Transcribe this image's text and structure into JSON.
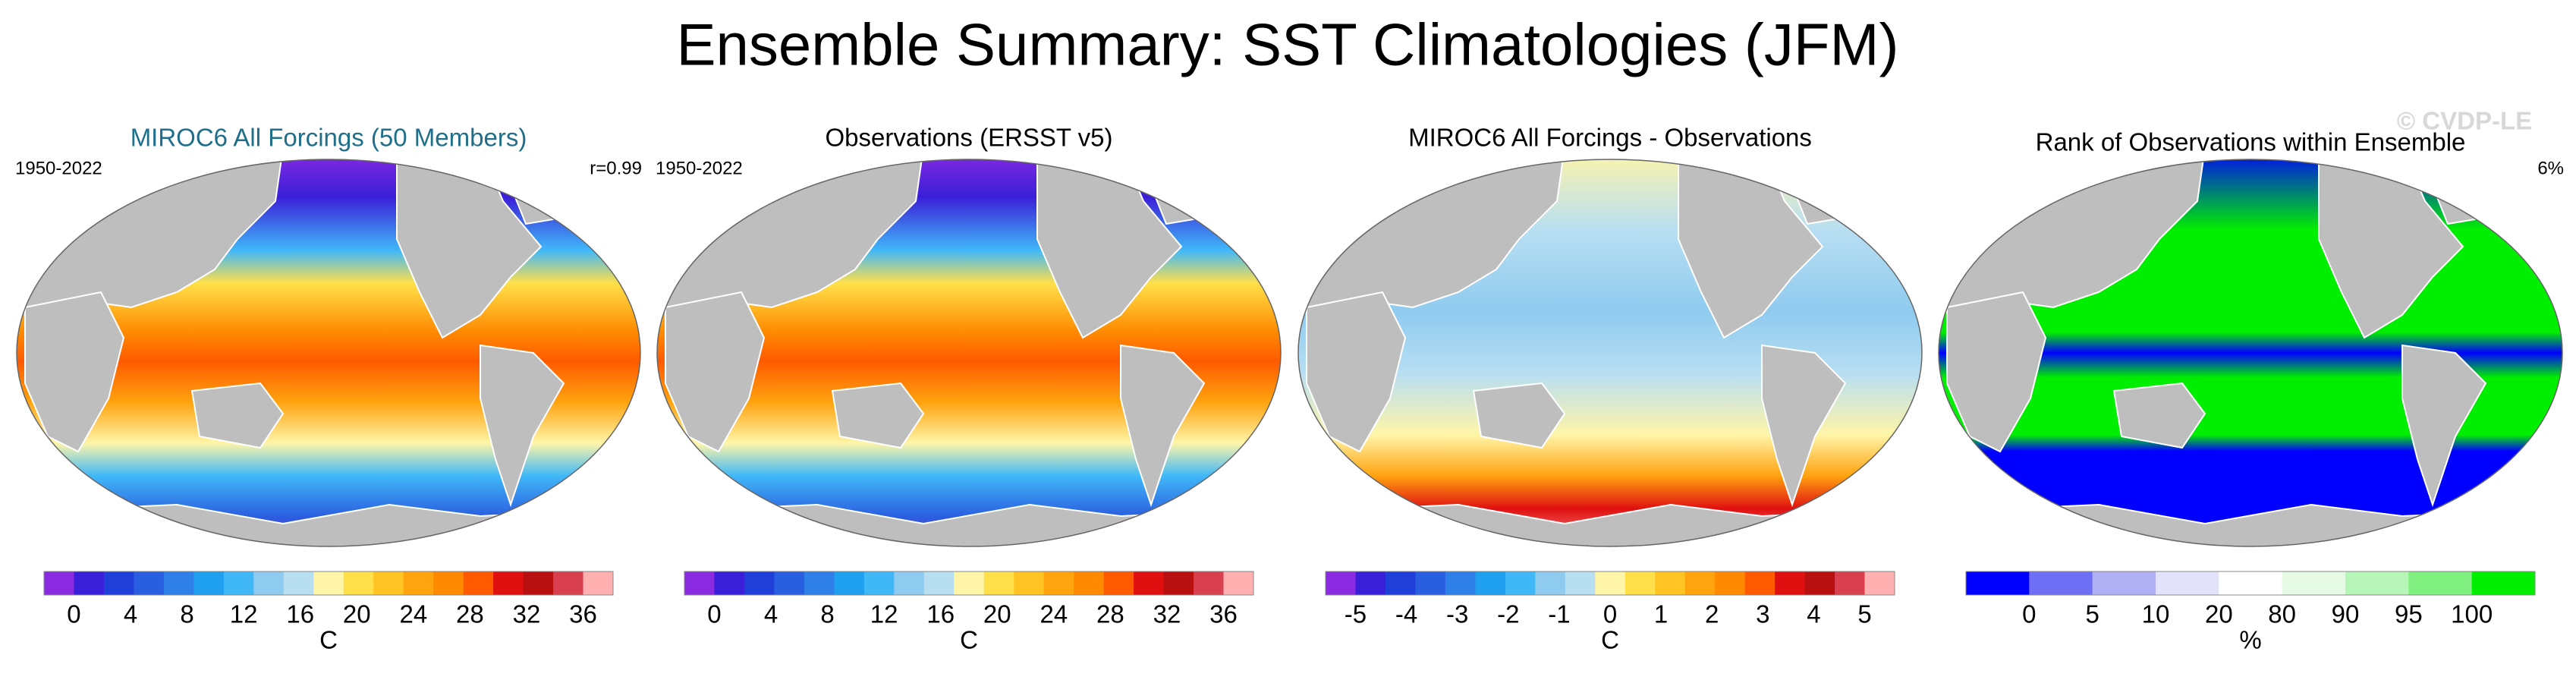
{
  "title": "Ensemble Summary: SST Climatologies (JFM)",
  "watermark": "© CVDP-LE",
  "panels": [
    {
      "title": "MIROC6 All Forcings (50 Members)",
      "title_color": "#1f6f8b",
      "left_label": "1950-2022",
      "right_label": "r=0.99",
      "colorbar": {
        "colors": [
          "#8a2be2",
          "#3a1fd8",
          "#1f3fd8",
          "#2a5ee0",
          "#2f7fe8",
          "#1f9ff0",
          "#40b8f8",
          "#8fcbef",
          "#b8def2",
          "#fff5a8",
          "#ffe04a",
          "#ffc423",
          "#ffa30f",
          "#ff8a00",
          "#ff5a00",
          "#e01010",
          "#b81010",
          "#d84050",
          "#ffb0b0"
        ],
        "ticks": [
          0,
          4,
          8,
          12,
          16,
          20,
          24,
          28,
          32,
          36
        ],
        "label": "C"
      }
    },
    {
      "title": "Observations (ERSST v5)",
      "title_color": "#000000",
      "left_label": "1950-2022",
      "colorbar": {
        "colors": [
          "#8a2be2",
          "#3a1fd8",
          "#1f3fd8",
          "#2a5ee0",
          "#2f7fe8",
          "#1f9ff0",
          "#40b8f8",
          "#8fcbef",
          "#b8def2",
          "#fff5a8",
          "#ffe04a",
          "#ffc423",
          "#ffa30f",
          "#ff8a00",
          "#ff5a00",
          "#e01010",
          "#b81010",
          "#d84050",
          "#ffb0b0"
        ],
        "ticks": [
          0,
          4,
          8,
          12,
          16,
          20,
          24,
          28,
          32,
          36
        ],
        "label": "C"
      }
    },
    {
      "title": "MIROC6 All Forcings - Observations",
      "title_color": "#000000",
      "colorbar": {
        "colors": [
          "#8a2be2",
          "#3a1fd8",
          "#1f3fd8",
          "#2a5ee0",
          "#2f7fe8",
          "#1f9ff0",
          "#40b8f8",
          "#8fcbef",
          "#b8def2",
          "#fff5a8",
          "#ffe04a",
          "#ffc423",
          "#ffa30f",
          "#ff8a00",
          "#ff5a00",
          "#e01010",
          "#b81010",
          "#d84050",
          "#ffb0b0"
        ],
        "ticks": [
          -5,
          -4,
          -3,
          -2,
          -1,
          0,
          1,
          2,
          3,
          4,
          5
        ],
        "label": "C"
      }
    },
    {
      "title": "Rank of Observations within Ensemble",
      "title_color": "#000000",
      "right_label": "6%",
      "colorbar": {
        "colors": [
          "#0000ff",
          "#6f6ff5",
          "#b0b0f5",
          "#e2e2fb",
          "#ffffff",
          "#e6fbe6",
          "#b8f5b8",
          "#80f080",
          "#00ee00"
        ],
        "ticks": [
          0,
          5,
          10,
          20,
          80,
          90,
          95,
          100
        ],
        "label": "%"
      }
    }
  ]
}
